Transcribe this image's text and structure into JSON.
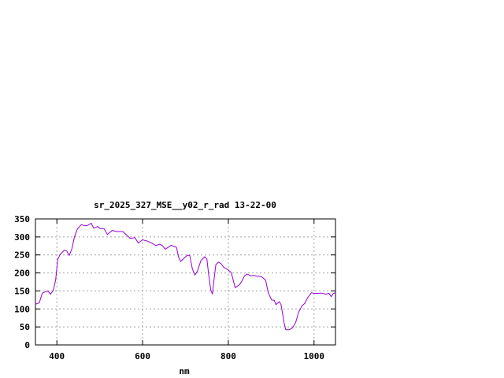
{
  "chart_data": {
    "type": "line",
    "title": "sr_2025_327_MSE__y02_r_rad 13-22-00",
    "xlabel": "nm",
    "ylabel": "",
    "xlim": [
      350,
      1050
    ],
    "ylim": [
      0,
      350
    ],
    "xticks": [
      400,
      600,
      800,
      1000
    ],
    "yticks": [
      0,
      50,
      100,
      150,
      200,
      250,
      300,
      350
    ],
    "grid": true,
    "line_color": "#9400d3",
    "series": [
      {
        "x": [
          350,
          359,
          366,
          374,
          380,
          385,
          391,
          397,
          402,
          408,
          417,
          423,
          429,
          435,
          441,
          448,
          457,
          466,
          472,
          480,
          486,
          495,
          501,
          510,
          518,
          529,
          539,
          554,
          562,
          571,
          582,
          590,
          600,
          612,
          621,
          631,
          640,
          646,
          653,
          667,
          679,
          684,
          689,
          704,
          710,
          716,
          722,
          728,
          736,
          745,
          750,
          754,
          759,
          763,
          767,
          771,
          777,
          783,
          789,
          798,
          807,
          816,
          826,
          832,
          838,
          844,
          852,
          860,
          868,
          877,
          887,
          893,
          901,
          907,
          911,
          919,
          923,
          930,
          934,
          942,
          950,
          957,
          964,
          972,
          978,
          985,
          994,
          1000,
          1018,
          1027,
          1035,
          1040,
          1045,
          1050
        ],
        "y": [
          113,
          117,
          144,
          148,
          149,
          141,
          150,
          179,
          238,
          252,
          263,
          261,
          249,
          267,
          300,
          322,
          334,
          331,
          332,
          338,
          324,
          329,
          323,
          323,
          307,
          318,
          315,
          315,
          306,
          296,
          298,
          283,
          292,
          288,
          283,
          276,
          280,
          276,
          266,
          277,
          271,
          244,
          232,
          249,
          249,
          212,
          194,
          205,
          234,
          245,
          239,
          197,
          153,
          141,
          186,
          223,
          230,
          226,
          216,
          210,
          201,
          159,
          167,
          178,
          192,
          197,
          192,
          193,
          191,
          190,
          180,
          146,
          125,
          124,
          112,
          120,
          112,
          62,
          42,
          42,
          48,
          62,
          91,
          109,
          115,
          131,
          145,
          143,
          144,
          141,
          143,
          134,
          143,
          145
        ]
      }
    ]
  }
}
